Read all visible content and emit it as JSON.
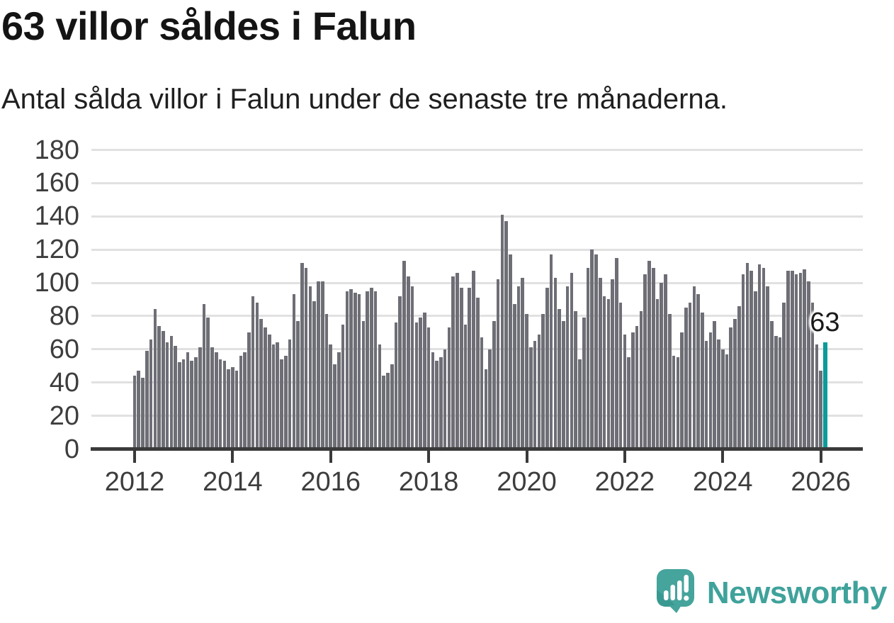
{
  "header": {
    "title": "63 villor såldes i Falun",
    "subtitle": "Antal sålda villor i Falun under de senaste tre månaderna."
  },
  "annotation": {
    "value_label": "63"
  },
  "footer": {
    "brand": "Newsworthy",
    "logo_icon": "speech-bubble-bar-chart"
  },
  "colors": {
    "bar": "#6e6e76",
    "highlight": "#0a9b9b",
    "grid": "#e1e1e1",
    "axis": "#3a3a3a",
    "tick_label": "#3d3d3d",
    "title": "#141414",
    "logo_teal": "#3fa29b",
    "background": "#ffffff"
  },
  "chart_data": {
    "type": "bar",
    "title": "63 villor såldes i Falun",
    "subtitle": "Antal sålda villor i Falun under de senaste tre månaderna.",
    "frequency": "monthly",
    "x_start": "2012-01",
    "x_end": "2026-02",
    "ylim": [
      0,
      180
    ],
    "y_ticks": [
      0,
      20,
      40,
      60,
      80,
      100,
      120,
      140,
      160,
      180
    ],
    "x_tick_labels": [
      "2012",
      "2014",
      "2016",
      "2018",
      "2020",
      "2022",
      "2024",
      "2026"
    ],
    "x_tick_month_indices": [
      0,
      24,
      48,
      72,
      96,
      120,
      144,
      168
    ],
    "grid": "horizontal",
    "legend": "none",
    "highlight_last_bar": true,
    "highlight_label": "63",
    "values": [
      43,
      46,
      42,
      58,
      65,
      83,
      73,
      70,
      63,
      67,
      61,
      51,
      53,
      57,
      52,
      54,
      60,
      86,
      78,
      60,
      57,
      53,
      52,
      47,
      48,
      46,
      55,
      57,
      69,
      91,
      87,
      77,
      72,
      68,
      62,
      63,
      53,
      55,
      65,
      92,
      76,
      111,
      108,
      97,
      88,
      100,
      100,
      80,
      62,
      50,
      57,
      74,
      94,
      95,
      93,
      92,
      76,
      94,
      96,
      94,
      62,
      43,
      45,
      50,
      75,
      91,
      112,
      103,
      97,
      75,
      78,
      81,
      72,
      57,
      52,
      54,
      59,
      72,
      103,
      105,
      96,
      74,
      96,
      106,
      90,
      66,
      47,
      59,
      76,
      101,
      140,
      136,
      116,
      86,
      97,
      102,
      80,
      60,
      64,
      68,
      80,
      96,
      116,
      102,
      83,
      76,
      97,
      105,
      82,
      53,
      78,
      108,
      119,
      116,
      102,
      91,
      89,
      101,
      114,
      87,
      68,
      54,
      69,
      73,
      82,
      104,
      112,
      108,
      89,
      99,
      104,
      80,
      55,
      54,
      69,
      84,
      87,
      97,
      92,
      81,
      64,
      69,
      76,
      65,
      59,
      56,
      72,
      77,
      85,
      104,
      111,
      106,
      94,
      110,
      108,
      97,
      76,
      67,
      66,
      87,
      106,
      106,
      104,
      105,
      107,
      100,
      87,
      62,
      46,
      63
    ]
  }
}
